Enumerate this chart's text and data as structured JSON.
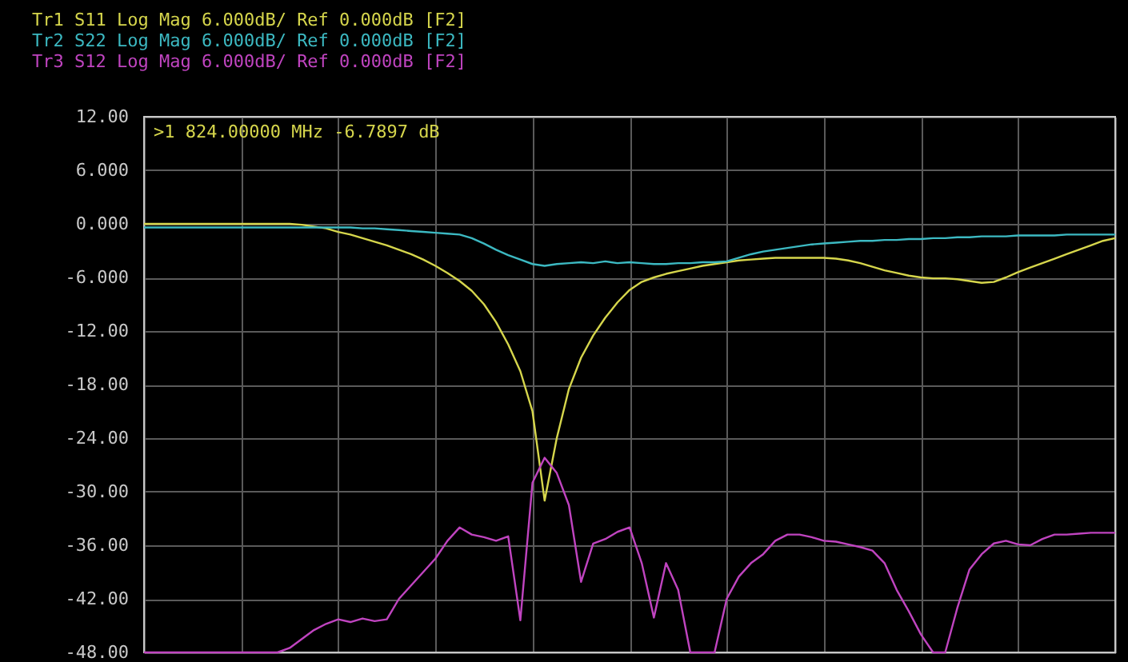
{
  "chart_data": {
    "type": "line",
    "categories": [
      null,
      null,
      null,
      null,
      null,
      null,
      null,
      null,
      null,
      null,
      null,
      null,
      null,
      null,
      null,
      null,
      null,
      null,
      null,
      null,
      null,
      null,
      null,
      null,
      null,
      null,
      null,
      null,
      null,
      null,
      null,
      null,
      null,
      null,
      null,
      null,
      null,
      null,
      null,
      null,
      null,
      null,
      null,
      null,
      null,
      null,
      null,
      null,
      null,
      null,
      null,
      null,
      null,
      null,
      null,
      null,
      null,
      null,
      null,
      null,
      null,
      null,
      null,
      null,
      null,
      null,
      null,
      null,
      null,
      null,
      null,
      null,
      null,
      null,
      null,
      null,
      null,
      null,
      null,
      null,
      null
    ],
    "series": [
      {
        "name": "Tr1 S11 Log Mag 6.000dB/ Ref 0.000dB [F2]",
        "color": "#d6d64c",
        "values": [
          0,
          0,
          0,
          0,
          0,
          0,
          0,
          0,
          0,
          0,
          0,
          0,
          0,
          -0.1,
          -0.3,
          -0.5,
          -0.9,
          -1.2,
          -1.6,
          -2.0,
          -2.4,
          -2.9,
          -3.4,
          -4.0,
          -4.7,
          -5.5,
          -6.4,
          -7.5,
          -9.0,
          -11.0,
          -13.5,
          -16.5,
          -21.0,
          -31.0,
          -24.0,
          -18.5,
          -15.0,
          -12.5,
          -10.5,
          -8.8,
          -7.4,
          -6.5,
          -6.0,
          -5.6,
          -5.3,
          -5.0,
          -4.7,
          -4.5,
          -4.3,
          -4.1,
          -4.0,
          -3.9,
          -3.8,
          -3.8,
          -3.8,
          -3.8,
          -3.8,
          -3.9,
          -4.1,
          -4.4,
          -4.8,
          -5.2,
          -5.5,
          -5.8,
          -6.0,
          -6.1,
          -6.1,
          -6.2,
          -6.4,
          -6.6,
          -6.5,
          -6.0,
          -5.4,
          -4.9,
          -4.4,
          -3.9,
          -3.4,
          -2.9,
          -2.4,
          -1.9,
          -1.6
        ]
      },
      {
        "name": "Tr2 S22 Log Mag 6.000dB/ Ref 0.000dB [F2]",
        "color": "#3cb9c2",
        "values": [
          -0.4,
          -0.4,
          -0.4,
          -0.4,
          -0.4,
          -0.4,
          -0.4,
          -0.4,
          -0.4,
          -0.4,
          -0.4,
          -0.4,
          -0.4,
          -0.4,
          -0.4,
          -0.4,
          -0.4,
          -0.4,
          -0.5,
          -0.5,
          -0.6,
          -0.7,
          -0.8,
          -0.9,
          -1.0,
          -1.1,
          -1.2,
          -1.6,
          -2.2,
          -2.9,
          -3.5,
          -4.0,
          -4.5,
          -4.7,
          -4.5,
          -4.4,
          -4.3,
          -4.4,
          -4.2,
          -4.4,
          -4.3,
          -4.4,
          -4.5,
          -4.5,
          -4.4,
          -4.4,
          -4.3,
          -4.3,
          -4.2,
          -3.8,
          -3.4,
          -3.1,
          -2.9,
          -2.7,
          -2.5,
          -2.3,
          -2.2,
          -2.1,
          -2.0,
          -1.9,
          -1.9,
          -1.8,
          -1.8,
          -1.7,
          -1.7,
          -1.6,
          -1.6,
          -1.5,
          -1.5,
          -1.4,
          -1.4,
          -1.4,
          -1.3,
          -1.3,
          -1.3,
          -1.3,
          -1.2,
          -1.2,
          -1.2,
          -1.2,
          -1.2
        ]
      },
      {
        "name": "Tr3 S12 Log Mag 6.000dB/ Ref 0.000dB [F2]",
        "color": "#c044c0",
        "values": [
          -48,
          -48,
          -48,
          -48,
          -48,
          -48,
          -48,
          -48,
          -48,
          -48,
          -48,
          -48,
          -47.5,
          -46.5,
          -45.5,
          -44.8,
          -44.3,
          -44.6,
          -44.2,
          -44.5,
          -44.3,
          -42.0,
          -40.5,
          -39.0,
          -37.5,
          -35.5,
          -34.0,
          -34.8,
          -35.1,
          -35.5,
          -35.0,
          -44.4,
          -29.0,
          -26.2,
          -27.9,
          -31.5,
          -40.1,
          -35.8,
          -35.3,
          -34.5,
          -34.0,
          -38.0,
          -44.1,
          -38.0,
          -41.0,
          -48,
          -48,
          -48,
          -42.0,
          -39.5,
          -38.0,
          -37.0,
          -35.5,
          -34.8,
          -34.8,
          -35.1,
          -35.5,
          -35.6,
          -35.9,
          -36.2,
          -36.6,
          -38.0,
          -41.0,
          -43.4,
          -46.0,
          -48,
          -48,
          -43.0,
          -38.7,
          -37.0,
          -35.8,
          -35.5,
          -35.9,
          -36.0,
          -35.3,
          -34.8,
          -34.8,
          -34.7,
          -34.6,
          -34.6,
          -34.6
        ]
      }
    ],
    "ylim": [
      -48,
      12
    ],
    "yticks": [
      {
        "value": 12,
        "label": "12.00"
      },
      {
        "value": 6,
        "label": "6.000"
      },
      {
        "value": 0,
        "label": "0.000"
      },
      {
        "value": -6,
        "label": "-6.000"
      },
      {
        "value": -12,
        "label": "-12.00"
      },
      {
        "value": -18,
        "label": "-18.00"
      },
      {
        "value": -24,
        "label": "-24.00"
      },
      {
        "value": -30,
        "label": "-30.00"
      },
      {
        "value": -36,
        "label": "-36.00"
      },
      {
        "value": -42,
        "label": "-42.00"
      },
      {
        "value": -48,
        "label": "-48.00"
      }
    ],
    "annotations": [
      ">1  824.00000 MHz -6.7897 dB"
    ],
    "grid": true,
    "legend": "top left",
    "tick_labels": "y"
  }
}
